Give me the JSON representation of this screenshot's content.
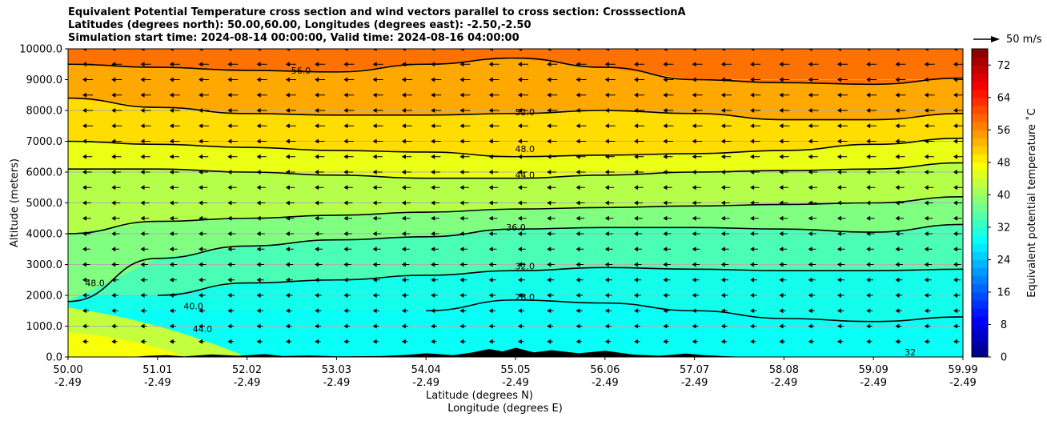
{
  "titles": {
    "line1": "Equivalent Potential Temperature cross section and wind vectors parallel to cross section: CrosssectionA",
    "line2": "Latitudes (degrees north): 50.00,60.00, Longitudes (degrees east): -2.50,-2.50",
    "line3": "Simulation start time: 2024-08-14 00:00:00, Valid time: 2024-08-16 04:00:00"
  },
  "reference_vector": "50 m/s",
  "chart_data": {
    "type": "heatmap",
    "title": "Equivalent Potential Temperature cross section and wind vectors parallel to cross section: CrosssectionA",
    "xlabel_line1": "Latitude (degrees N)",
    "xlabel_line2": "Longitude (degrees E)",
    "ylabel": "Altitude (meters)",
    "colorbar_label": "Equivalent potential temperature ˚C",
    "x_ticks_lat": [
      "50.00",
      "51.01",
      "52.02",
      "53.03",
      "54.04",
      "55.05",
      "56.06",
      "57.07",
      "58.08",
      "59.09",
      "59.99"
    ],
    "x_ticks_lon": [
      "-2.49",
      "-2.49",
      "-2.49",
      "-2.49",
      "-2.49",
      "-2.49",
      "-2.49",
      "-2.49",
      "-2.49",
      "-2.49",
      "-2.49"
    ],
    "y_ticks": [
      "0.0",
      "1000.0",
      "2000.0",
      "3000.0",
      "4000.0",
      "5000.0",
      "6000.0",
      "7000.0",
      "8000.0",
      "9000.0",
      "10000.0"
    ],
    "ylim": [
      0,
      10000
    ],
    "colorbar_ticks": [
      "0",
      "8",
      "16",
      "24",
      "32",
      "40",
      "48",
      "56",
      "64",
      "72"
    ],
    "colorbar_range": [
      0,
      76
    ],
    "grid": "horizontal",
    "contours": [
      {
        "level": 28,
        "label": "28.0",
        "altitude_profile": [
          null,
          null,
          null,
          null,
          1500,
          1850,
          1750,
          1500,
          1250,
          1150,
          1300
        ]
      },
      {
        "level": 32,
        "label": "32.0",
        "altitude_profile": [
          null,
          2000,
          2400,
          2500,
          2650,
          2800,
          2900,
          2850,
          2800,
          2800,
          2850
        ]
      },
      {
        "level": 36,
        "label": "36.0",
        "altitude_profile": [
          1800,
          3200,
          3600,
          3800,
          3900,
          4150,
          4200,
          4200,
          4150,
          4050,
          4300
        ]
      },
      {
        "level": 40,
        "label": "40.0",
        "altitude_profile": [
          4000,
          4400,
          4500,
          4600,
          4700,
          4800,
          4850,
          4900,
          4950,
          5000,
          5200
        ]
      },
      {
        "level": 44,
        "label": "44.0",
        "altitude_profile": [
          6100,
          6100,
          6000,
          5900,
          5800,
          5800,
          5900,
          6000,
          6050,
          6100,
          6300
        ]
      },
      {
        "level": 48,
        "label": "48.0",
        "altitude_profile": [
          7000,
          6900,
          6800,
          6700,
          6650,
          6500,
          6550,
          6600,
          6700,
          6900,
          7100
        ]
      },
      {
        "level": 52,
        "label": "52.0",
        "altitude_profile": [
          8400,
          8100,
          7900,
          7850,
          7850,
          7900,
          8000,
          7900,
          7700,
          7700,
          7900
        ]
      },
      {
        "level": 56,
        "label": "56.0",
        "altitude_profile": [
          9500,
          9400,
          9300,
          9250,
          9500,
          9700,
          9400,
          9000,
          8900,
          8850,
          9050
        ]
      }
    ],
    "inline_labels": [
      {
        "text": "56.0",
        "lat": 52.6,
        "alt": 9200
      },
      {
        "text": "52.0",
        "lat": 55.1,
        "alt": 7850
      },
      {
        "text": "48.0",
        "lat": 55.1,
        "alt": 6650
      },
      {
        "text": "44.0",
        "lat": 55.1,
        "alt": 5800
      },
      {
        "text": "36.0",
        "lat": 55.0,
        "alt": 4100
      },
      {
        "text": "32.0",
        "lat": 55.1,
        "alt": 2850
      },
      {
        "text": "28.0",
        "lat": 55.1,
        "alt": 1850
      },
      {
        "text": "40.0",
        "lat": 51.4,
        "alt": 1550
      },
      {
        "text": "44.0",
        "lat": 51.5,
        "alt": 800
      },
      {
        "text": "48.0",
        "lat": 50.3,
        "alt": 2300
      },
      {
        "text": "32",
        "lat": 59.4,
        "alt": 50
      }
    ],
    "wind": "vectors parallel to cross section, predominantly southward (pointing toward lower latitude), magnitude decreasing toward the surface"
  }
}
